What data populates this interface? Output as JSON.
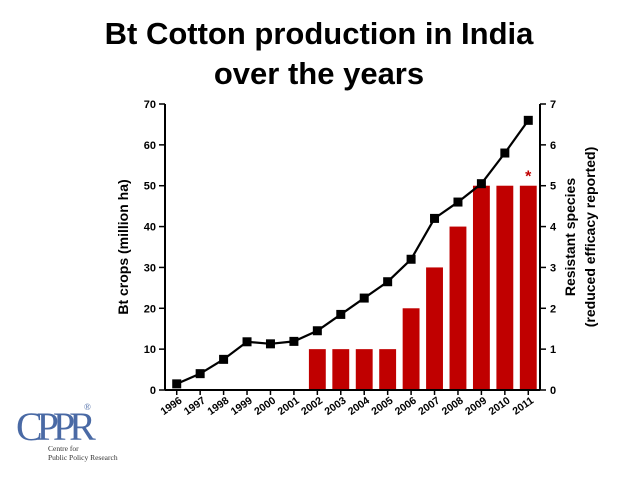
{
  "slide": {
    "title_line1": "Bt Cotton production in India",
    "title_line2": "over the years"
  },
  "logo": {
    "letters": "CPPR",
    "registered": "®",
    "line1": "Centre for",
    "line2": "Public Policy Research"
  },
  "colors": {
    "bar": "#c00000",
    "line": "#000000",
    "asterisk": "#c00000",
    "logo_blue": "#4a6aa5"
  },
  "chart_data": {
    "type": "bar+line",
    "categories": [
      "1996",
      "1997",
      "1998",
      "1999",
      "2000",
      "2001",
      "2002",
      "2003",
      "2004",
      "2005",
      "2006",
      "2007",
      "2008",
      "2009",
      "2010",
      "2011"
    ],
    "series": [
      {
        "name": "Bt crops (million ha)",
        "type": "line",
        "axis": "left",
        "marker": "square",
        "values": [
          1.5,
          4,
          7.5,
          11.8,
          11.3,
          11.9,
          14.5,
          18.5,
          22.5,
          26.5,
          32,
          42,
          46,
          50.5,
          58,
          66
        ]
      },
      {
        "name": "Resistant species (reduced efficacy reported)",
        "type": "bar",
        "axis": "right",
        "values": [
          0,
          0,
          0,
          0,
          0,
          0,
          1,
          1,
          1,
          1,
          2,
          3,
          4,
          5,
          5,
          5
        ]
      }
    ],
    "ylabel_left": "Bt crops (million ha)",
    "ylabel_right_line1": "Resistant species",
    "ylabel_right_line2": "(reduced efficacy reported)",
    "ylim_left": [
      0,
      70
    ],
    "yticks_left": [
      "0",
      "10",
      "20",
      "30",
      "40",
      "50",
      "60",
      "70"
    ],
    "ylim_right": [
      0,
      7
    ],
    "yticks_right": [
      "0",
      "1",
      "2",
      "3",
      "4",
      "5",
      "6",
      "7"
    ],
    "annotation": {
      "text": "*",
      "category": "2011"
    },
    "grid": false
  }
}
